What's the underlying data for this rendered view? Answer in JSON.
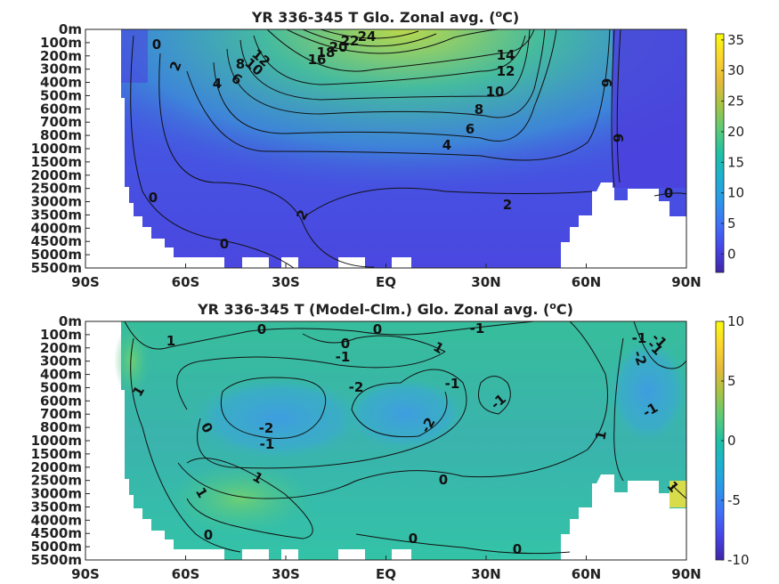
{
  "chart_data": [
    {
      "type": "heatmap",
      "title": "YR 336-345 T Glo. Zonal avg. (",
      "title_sup": "o",
      "title_suffix": "C)",
      "x_ticks": [
        "90S",
        "60S",
        "30S",
        "EQ",
        "30N",
        "60N",
        "90N"
      ],
      "y_ticks": [
        "0m",
        "100m",
        "200m",
        "300m",
        "400m",
        "500m",
        "600m",
        "700m",
        "800m",
        "1000m",
        "1500m",
        "2000m",
        "2500m",
        "3000m",
        "3500m",
        "4000m",
        "4500m",
        "5000m",
        "5500m"
      ],
      "colorbar": {
        "min": -3,
        "max": 36,
        "ticks": [
          "0",
          "5",
          "10",
          "15",
          "20",
          "25",
          "30",
          "35"
        ],
        "tick_values": [
          0,
          5,
          10,
          15,
          20,
          25,
          30,
          35
        ]
      },
      "contour_labels": [
        "24",
        "22",
        "20",
        "18",
        "16",
        "14",
        "12",
        "12",
        "10",
        "10",
        "8",
        "8",
        "6",
        "6",
        "4",
        "4",
        "2",
        "2",
        "2",
        "0",
        "0",
        "0",
        "0",
        "6",
        "6"
      ]
    },
    {
      "type": "heatmap",
      "title": "YR 336-345 T (Model-Clm.) Glo. Zonal avg. (",
      "title_sup": "o",
      "title_suffix": "C)",
      "x_ticks": [
        "90S",
        "60S",
        "30S",
        "EQ",
        "30N",
        "60N",
        "90N"
      ],
      "y_ticks": [
        "0m",
        "100m",
        "200m",
        "300m",
        "400m",
        "500m",
        "600m",
        "700m",
        "800m",
        "1000m",
        "1500m",
        "2000m",
        "2500m",
        "3000m",
        "3500m",
        "4000m",
        "4500m",
        "5000m",
        "5500m"
      ],
      "colorbar": {
        "min": -10,
        "max": 10,
        "ticks": [
          "10",
          "5",
          "0",
          "-5",
          "-10"
        ],
        "tick_values": [
          10,
          5,
          0,
          -5,
          -10
        ]
      },
      "contour_labels": [
        "0",
        "0",
        "-1",
        "1",
        "0",
        "1",
        "-1",
        "-1",
        "-1",
        "-1",
        "-1",
        "-2",
        "-1",
        "-2",
        "0",
        "-2",
        "-1",
        "1",
        "1",
        "0",
        "1",
        "0",
        "0",
        "0",
        "1",
        "1",
        "-1",
        "-2"
      ]
    }
  ],
  "colors": {
    "panel1": {
      "deep": "#4550e0",
      "mid": "#3f8bd6",
      "warm": "#2fb8a6",
      "hot": "#9ed64a"
    },
    "panel2": {
      "base": "#36c09a",
      "cool": "#3ea3d2",
      "warm": "#5bcb7c"
    },
    "colormap": [
      "#3e26a8",
      "#4744e8",
      "#3f70f8",
      "#2b97eb",
      "#1cb1d0",
      "#1fc1a4",
      "#5ccb77",
      "#a5c446",
      "#e5ba3a",
      "#fbd52e",
      "#f9fb0e"
    ]
  }
}
